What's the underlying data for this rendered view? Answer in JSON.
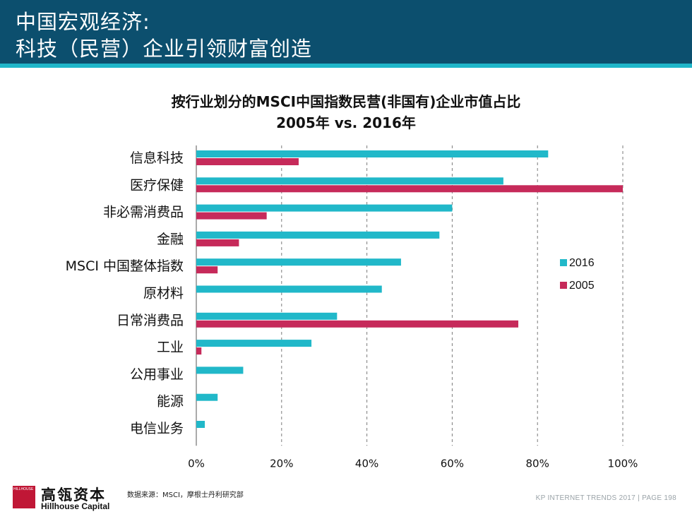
{
  "header": {
    "line1": "中国宏观经济:",
    "line2": "科技（民营）企业引领财富创造"
  },
  "chart_data": {
    "type": "bar",
    "orientation": "horizontal",
    "title": "按行业划分的MSCI中国指数民营(非国有)企业市值占比",
    "subtitle": "2005年 vs. 2016年",
    "categories": [
      "信息科技",
      "医疗保健",
      "非必需消费品",
      "金融",
      "MSCI 中国整体指数",
      "原材料",
      "日常消费品",
      "工业",
      "公用事业",
      "能源",
      "电信业务"
    ],
    "series": [
      {
        "name": "2016",
        "color": "#21b8c9",
        "values": [
          82.5,
          72,
          60,
          57,
          48,
          43.5,
          33,
          27,
          11,
          5,
          2
        ]
      },
      {
        "name": "2005",
        "color": "#c62a5a",
        "values": [
          24,
          100,
          16.5,
          10,
          5,
          0,
          75.5,
          1.2,
          0,
          0,
          0
        ]
      }
    ],
    "xlim": [
      0,
      100
    ],
    "xticks": [
      "0%",
      "20%",
      "40%",
      "60%",
      "80%",
      "100%"
    ],
    "grid": true,
    "legend": "right"
  },
  "footer": {
    "logo_cn": "高瓴资本",
    "logo_en": "Hillhouse Capital",
    "logo_small": "HILLHOUSE",
    "source": "数据来源：MSCI，摩根士丹利研究部",
    "page_label": "KP INTERNET TRENDS 2017  |  PAGE 198"
  }
}
